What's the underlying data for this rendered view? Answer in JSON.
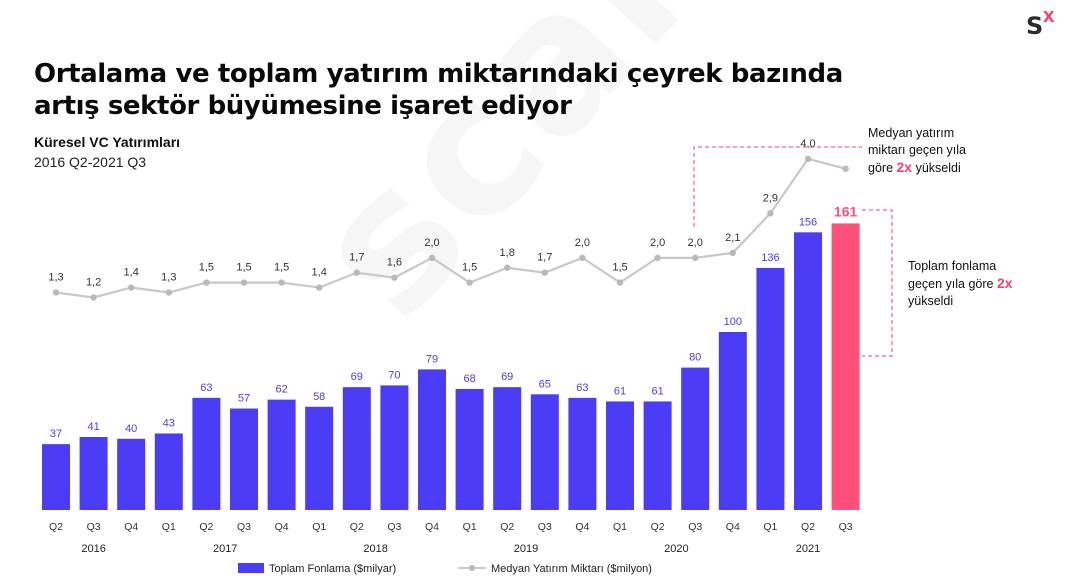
{
  "header": {
    "title_line1": "Ortalama ve toplam yatırım miktarındaki çeyrek bazında",
    "title_line2": "artış sektör büyümesine işaret ediyor",
    "subtitle": "Küresel VC Yatırımları",
    "period": "2016 Q2-2021 Q3",
    "logo_text": "SX",
    "watermark": "scalex"
  },
  "notes": {
    "median_line1": "Medyan yatırım",
    "median_line2": "miktarı geçen yıla",
    "median_line3_pre": "göre",
    "median_highlight": "2x",
    "median_line3_post": "yükseldi",
    "total_line1": "Toplam fonlama",
    "total_line2_pre": "geçen yıla göre",
    "total_highlight": "2x",
    "total_line3": "yükseldi"
  },
  "colors": {
    "bar": "#4b3cf5",
    "bar_highlight": "#ff4f7b",
    "line": "#c8c8c8",
    "accent": "#ff3d71",
    "dashed": "#ff3d71"
  },
  "chart_data": {
    "type": "bar",
    "categories": [
      "Q2",
      "Q3",
      "Q4",
      "Q1",
      "Q2",
      "Q3",
      "Q4",
      "Q1",
      "Q2",
      "Q3",
      "Q4",
      "Q1",
      "Q2",
      "Q3",
      "Q4",
      "Q1",
      "Q2",
      "Q3",
      "Q4",
      "Q1",
      "Q2",
      "Q3"
    ],
    "years": [
      {
        "label": "2016",
        "start": 0,
        "end": 2
      },
      {
        "label": "2017",
        "start": 3,
        "end": 6
      },
      {
        "label": "2018",
        "start": 7,
        "end": 10
      },
      {
        "label": "2019",
        "start": 11,
        "end": 14
      },
      {
        "label": "2020",
        "start": 15,
        "end": 18
      },
      {
        "label": "2021",
        "start": 19,
        "end": 21
      }
    ],
    "series": [
      {
        "name": "Toplam Fonlama ($milyar)",
        "type": "bar",
        "values": [
          37,
          41,
          40,
          43,
          63,
          57,
          62,
          58,
          69,
          70,
          79,
          68,
          69,
          65,
          63,
          61,
          61,
          80,
          100,
          136,
          156,
          161
        ]
      },
      {
        "name": "Medyan Yatırım Miktarı ($milyon)",
        "type": "line",
        "values": [
          1.3,
          1.2,
          1.4,
          1.3,
          1.5,
          1.5,
          1.5,
          1.4,
          1.7,
          1.6,
          2.0,
          1.5,
          1.8,
          1.7,
          2.0,
          1.5,
          2.0,
          2.0,
          2.1,
          2.9,
          4.0,
          3.8
        ],
        "labels": [
          "1,3",
          "1,2",
          "1,4",
          "1,3",
          "1,5",
          "1,5",
          "1,5",
          "1,4",
          "1,7",
          "1,6",
          "2,0",
          "1,5",
          "1,8",
          "1,7",
          "2,0",
          "1,5",
          "2,0",
          "2,0",
          "2,1",
          "2,9",
          "4,0",
          ""
        ]
      }
    ],
    "highlight_index": 21,
    "legend": [
      {
        "label": "Toplam Fonlama ($milyar)",
        "kind": "bar"
      },
      {
        "label": "Medyan Yatırım Miktarı ($milyon)",
        "kind": "line"
      }
    ],
    "legend_position": "bottom"
  }
}
